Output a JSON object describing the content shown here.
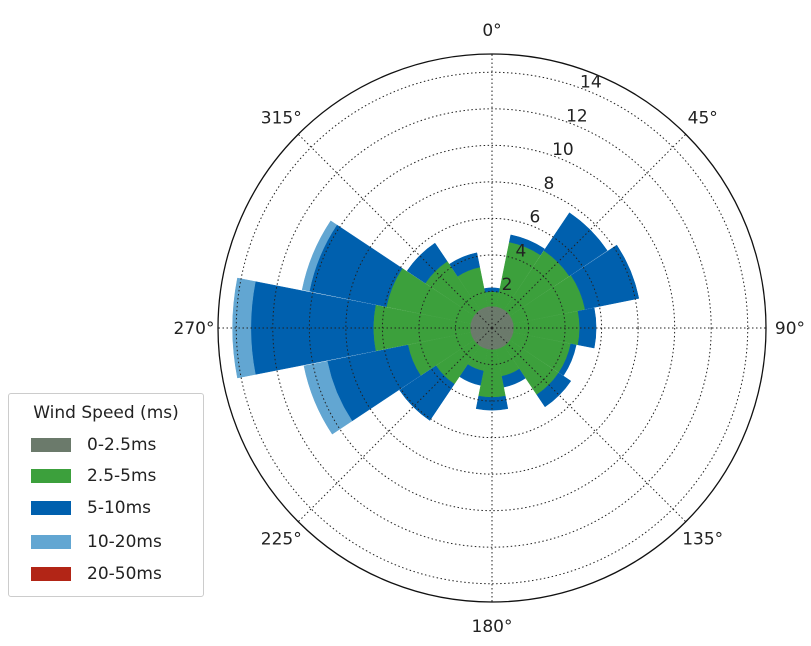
{
  "chart_data": {
    "type": "windrose",
    "angle_unit": "degrees",
    "direction_labels": [
      "0°",
      "45°",
      "90°",
      "135°",
      "180°",
      "225°",
      "270°",
      "315°"
    ],
    "r_ticks": [
      2,
      4,
      6,
      8,
      10,
      12,
      14
    ],
    "r_tick_labels": [
      "2",
      "4",
      "6",
      "8",
      "10",
      "12",
      "14"
    ],
    "r_max": 15,
    "grid": true,
    "stacked": true,
    "legend": {
      "title": "Wind Speed (ms)",
      "placement": "lower-left",
      "entries": [
        "0-2.5ms",
        "2.5-5ms",
        "5-10ms",
        "10-20ms",
        "20-50ms"
      ]
    },
    "directions": [
      0,
      22.5,
      45,
      67.5,
      90,
      112.5,
      135,
      157.5,
      180,
      202.5,
      225,
      247.5,
      270,
      292.5,
      315,
      337.5
    ],
    "series": [
      {
        "name": "0-2.5ms",
        "color": "#6b7a6b",
        "values": [
          1.2,
          1.2,
          1.2,
          1.2,
          1.2,
          1.2,
          1.2,
          1.2,
          1.2,
          1.2,
          1.2,
          1.2,
          1.2,
          1.2,
          1.2,
          1.2
        ]
      },
      {
        "name": "2.5-5ms",
        "color": "#3ca03c",
        "values": [
          0.8,
          3.6,
          3.9,
          4.0,
          3.6,
          3.2,
          3.2,
          1.5,
          2.6,
          1.2,
          2.5,
          3.5,
          5.3,
          4.7,
          3.2,
          2.2
        ]
      },
      {
        "name": "5-10ms",
        "color": "#0060ae",
        "values": [
          0.2,
          0.4,
          2.5,
          3.0,
          0.9,
          0.3,
          0.8,
          0.6,
          0.7,
          0.8,
          2.4,
          4.5,
          6.7,
          4.3,
          1.2,
          0.8
        ]
      },
      {
        "name": "10-20ms",
        "color": "#62a6d2",
        "values": [
          0,
          0,
          0,
          0,
          0,
          0,
          0,
          0,
          0,
          0,
          0,
          1.3,
          1.0,
          0.4,
          0,
          0
        ]
      },
      {
        "name": "20-50ms",
        "color": "#b22516",
        "values": [
          0,
          0,
          0,
          0,
          0,
          0,
          0,
          0,
          0,
          0,
          0,
          0,
          0,
          0,
          0,
          0
        ]
      }
    ]
  }
}
